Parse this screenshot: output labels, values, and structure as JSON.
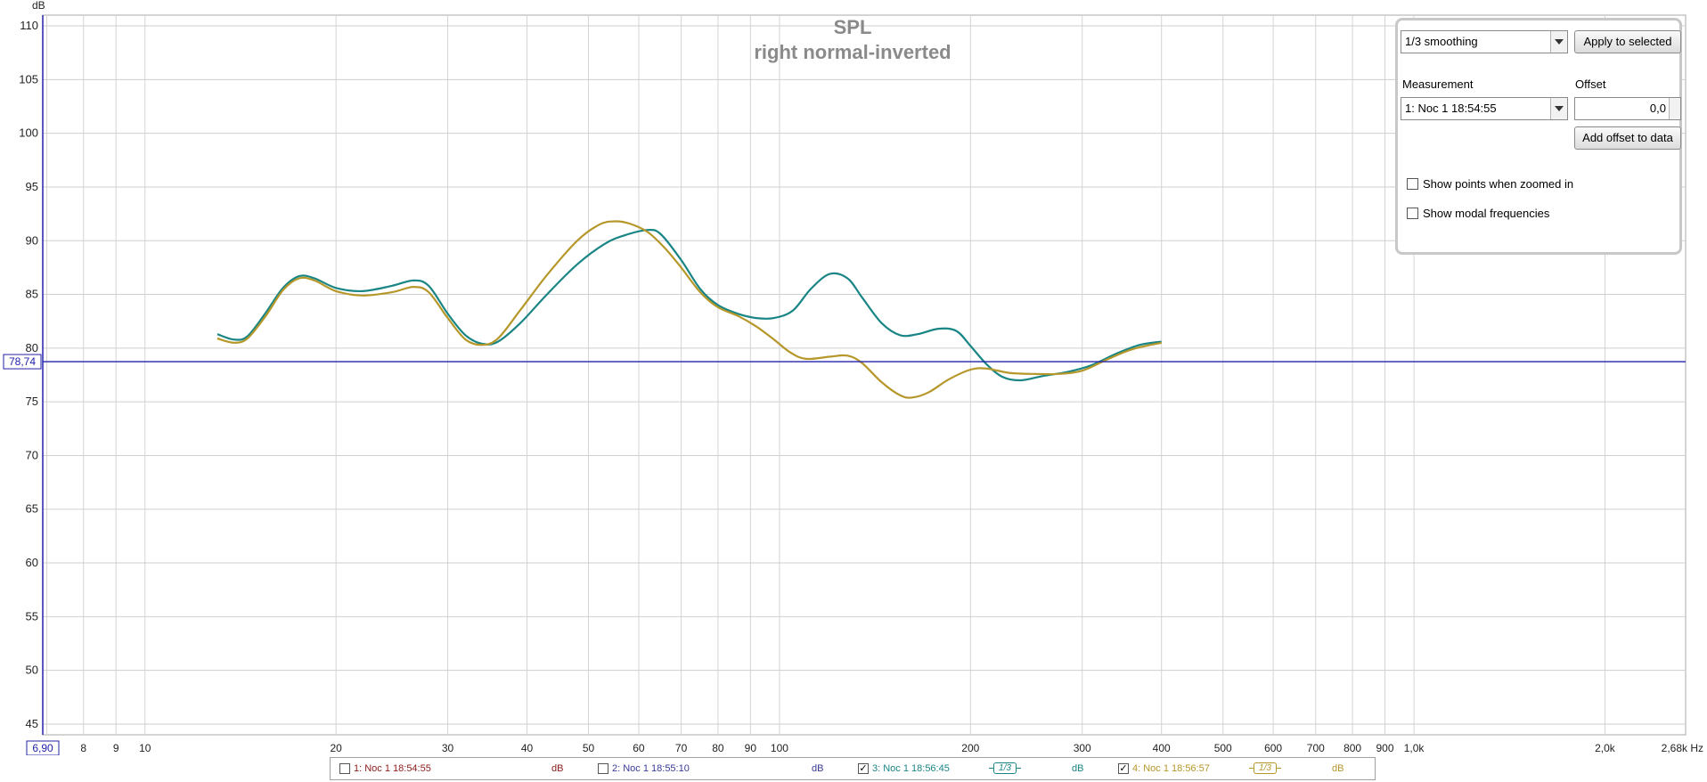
{
  "chart_data": {
    "type": "line",
    "title": "SPL",
    "subtitle": "right normal-inverted",
    "ylabel": "dB",
    "xunit": "Hz",
    "xscale": "log",
    "xlim": [
      6.9,
      2680
    ],
    "ylim": [
      44,
      111
    ],
    "grid": true,
    "yticks": [
      110,
      105,
      100,
      95,
      90,
      85,
      80,
      75,
      70,
      65,
      60,
      55,
      50,
      45
    ],
    "xticks": [
      {
        "v": 8,
        "label": "8"
      },
      {
        "v": 9,
        "label": "9"
      },
      {
        "v": 10,
        "label": "10"
      },
      {
        "v": 20,
        "label": "20"
      },
      {
        "v": 30,
        "label": "30"
      },
      {
        "v": 40,
        "label": "40"
      },
      {
        "v": 50,
        "label": "50"
      },
      {
        "v": 60,
        "label": "60"
      },
      {
        "v": 70,
        "label": "70"
      },
      {
        "v": 80,
        "label": "80"
      },
      {
        "v": 90,
        "label": "90"
      },
      {
        "v": 100,
        "label": "100"
      },
      {
        "v": 200,
        "label": "200"
      },
      {
        "v": 300,
        "label": "300"
      },
      {
        "v": 400,
        "label": "400"
      },
      {
        "v": 500,
        "label": "500"
      },
      {
        "v": 600,
        "label": "600"
      },
      {
        "v": 700,
        "label": "700"
      },
      {
        "v": 800,
        "label": "800"
      },
      {
        "v": 900,
        "label": "900"
      },
      {
        "v": 1000,
        "label": "1,0k"
      },
      {
        "v": 2000,
        "label": "2,0k"
      },
      {
        "v": 2680,
        "label": "2,68k Hz"
      }
    ],
    "minor_grid_x": [
      7,
      8,
      9,
      10,
      20,
      30,
      40,
      50,
      60,
      70,
      80,
      90,
      100,
      200,
      300,
      400,
      500,
      600,
      700,
      800,
      900,
      1000,
      2000
    ],
    "cursor": {
      "y": 78.74,
      "y_label": "78,74",
      "x_label": "6,90"
    },
    "series": [
      {
        "name": "3: Noc 1 18:56:45",
        "color": "#1a8585",
        "points": [
          [
            13,
            81.3
          ],
          [
            13.8,
            80.8
          ],
          [
            14.5,
            81.1
          ],
          [
            15.5,
            83.3
          ],
          [
            16.5,
            85.6
          ],
          [
            17.5,
            86.7
          ],
          [
            18.5,
            86.5
          ],
          [
            20,
            85.6
          ],
          [
            22,
            85.3
          ],
          [
            24.5,
            85.8
          ],
          [
            26.5,
            86.3
          ],
          [
            28,
            85.8
          ],
          [
            30,
            83.2
          ],
          [
            32,
            81.2
          ],
          [
            34,
            80.4
          ],
          [
            36,
            80.6
          ],
          [
            39,
            82.3
          ],
          [
            43,
            85.0
          ],
          [
            48,
            87.8
          ],
          [
            53,
            89.7
          ],
          [
            57,
            90.5
          ],
          [
            62,
            91.0
          ],
          [
            65,
            90.6
          ],
          [
            70,
            88.2
          ],
          [
            75,
            85.5
          ],
          [
            80,
            84.0
          ],
          [
            86,
            83.2
          ],
          [
            92,
            82.8
          ],
          [
            98,
            82.8
          ],
          [
            105,
            83.5
          ],
          [
            112,
            85.5
          ],
          [
            120,
            86.9
          ],
          [
            128,
            86.5
          ],
          [
            135,
            84.7
          ],
          [
            145,
            82.3
          ],
          [
            155,
            81.2
          ],
          [
            165,
            81.3
          ],
          [
            178,
            81.8
          ],
          [
            190,
            81.6
          ],
          [
            200,
            80.2
          ],
          [
            212,
            78.5
          ],
          [
            225,
            77.3
          ],
          [
            240,
            77.0
          ],
          [
            260,
            77.4
          ],
          [
            285,
            77.8
          ],
          [
            310,
            78.4
          ],
          [
            340,
            79.5
          ],
          [
            370,
            80.3
          ],
          [
            400,
            80.6
          ]
        ]
      },
      {
        "name": "4: Noc 1 18:56:57",
        "color": "#b5972a",
        "points": [
          [
            13,
            80.9
          ],
          [
            13.8,
            80.5
          ],
          [
            14.5,
            80.9
          ],
          [
            15.5,
            83.0
          ],
          [
            16.5,
            85.4
          ],
          [
            17.5,
            86.5
          ],
          [
            18.5,
            86.3
          ],
          [
            20,
            85.3
          ],
          [
            22,
            84.9
          ],
          [
            24.5,
            85.2
          ],
          [
            26.5,
            85.7
          ],
          [
            28,
            85.2
          ],
          [
            30,
            82.8
          ],
          [
            32,
            80.8
          ],
          [
            34,
            80.3
          ],
          [
            36,
            80.9
          ],
          [
            39,
            83.5
          ],
          [
            43,
            86.8
          ],
          [
            48,
            90.0
          ],
          [
            52,
            91.5
          ],
          [
            55,
            91.8
          ],
          [
            58,
            91.6
          ],
          [
            62,
            90.8
          ],
          [
            66,
            89.3
          ],
          [
            70,
            87.5
          ],
          [
            75,
            85.2
          ],
          [
            80,
            83.8
          ],
          [
            86,
            83.0
          ],
          [
            92,
            82.0
          ],
          [
            98,
            80.8
          ],
          [
            104,
            79.6
          ],
          [
            110,
            79.0
          ],
          [
            120,
            79.2
          ],
          [
            128,
            79.3
          ],
          [
            135,
            78.6
          ],
          [
            145,
            76.8
          ],
          [
            155,
            75.6
          ],
          [
            162,
            75.4
          ],
          [
            172,
            75.9
          ],
          [
            185,
            77.1
          ],
          [
            200,
            78.0
          ],
          [
            212,
            78.1
          ],
          [
            230,
            77.7
          ],
          [
            250,
            77.6
          ],
          [
            275,
            77.6
          ],
          [
            300,
            77.9
          ],
          [
            330,
            79.0
          ],
          [
            360,
            79.9
          ],
          [
            400,
            80.5
          ]
        ]
      }
    ]
  },
  "panel": {
    "smoothing_value": "1/3 smoothing",
    "apply_label": "Apply to selected",
    "measurement_label": "Measurement",
    "offset_label": "Offset",
    "measurement_value": "1: Noc 1 18:54:55",
    "offset_value": "0,0",
    "add_offset_label": "Add offset to data",
    "show_points_label": "Show points when zoomed in",
    "show_modal_label": "Show modal frequencies"
  },
  "legend": {
    "items": [
      {
        "name": "1: Noc 1 18:54:55",
        "checked": false,
        "color": "#8b1a1a",
        "unit": "dB"
      },
      {
        "name": "2: Noc 1 18:55:10",
        "checked": false,
        "color": "#3a3a9a",
        "unit": "dB"
      },
      {
        "name": "3: Noc 1 18:56:45",
        "checked": true,
        "color": "#1a8585",
        "unit": "dB",
        "smoothing": "1/3"
      },
      {
        "name": "4: Noc 1 18:56:57",
        "checked": true,
        "color": "#b5972a",
        "unit": "dB",
        "smoothing": "1/3"
      }
    ]
  }
}
